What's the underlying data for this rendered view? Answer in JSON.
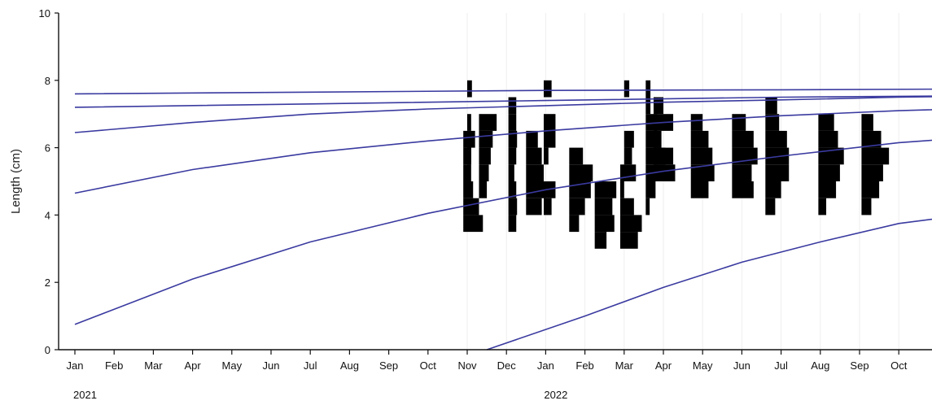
{
  "chart_data": {
    "type": "bar",
    "title": "",
    "xlabel": "",
    "ylabel": "Length (cm)",
    "ylim": [
      0,
      10
    ],
    "yticks": [
      "0",
      "2",
      "4",
      "6",
      "8",
      "10"
    ],
    "xlim": [
      "2021-01",
      "2022-11"
    ],
    "month_ticks": [
      "Jan",
      "Feb",
      "Mar",
      "Apr",
      "May",
      "Jun",
      "Jul",
      "Aug",
      "Sep",
      "Oct",
      "Nov",
      "Dec",
      "Jan",
      "Feb",
      "Mar",
      "Apr",
      "May",
      "Jun",
      "Jul",
      "Aug",
      "Sep",
      "Oct"
    ],
    "year_labels": [
      {
        "label": "2021",
        "month_index": 0
      },
      {
        "label": "2022",
        "month_index": 12
      }
    ],
    "grid": "vertical lines at 2022 month starts",
    "colors": {
      "growth_curve": "#3a3aa0",
      "histogram": "#000000",
      "axis": "#111111",
      "grid": "#eeeeee"
    },
    "growth_curves": [
      {
        "x": [
          0,
          3,
          6,
          9,
          12,
          15,
          18,
          21,
          24
        ],
        "y": [
          0.75,
          2.1,
          3.2,
          4.05,
          4.75,
          5.3,
          5.75,
          6.15,
          6.4
        ]
      },
      {
        "x": [
          0,
          3,
          6,
          9,
          12,
          15,
          18,
          21,
          24
        ],
        "y": [
          4.65,
          5.35,
          5.85,
          6.2,
          6.5,
          6.75,
          6.95,
          7.1,
          7.2
        ]
      },
      {
        "x": [
          0,
          3,
          6,
          9,
          12,
          15,
          18,
          21,
          24
        ],
        "y": [
          6.45,
          6.75,
          7.0,
          7.15,
          7.25,
          7.35,
          7.42,
          7.5,
          7.55
        ]
      },
      {
        "x": [
          0,
          6,
          12,
          18,
          24
        ],
        "y": [
          7.2,
          7.3,
          7.4,
          7.5,
          7.55
        ]
      },
      {
        "x": [
          0,
          6,
          12,
          18,
          24
        ],
        "y": [
          7.6,
          7.65,
          7.7,
          7.72,
          7.75
        ]
      },
      {
        "x": [
          10.5,
          13,
          15,
          17,
          19,
          21,
          24
        ],
        "y": [
          0.0,
          1.0,
          1.85,
          2.6,
          3.2,
          3.75,
          4.2
        ]
      }
    ],
    "histograms": [
      {
        "month": 9.9,
        "bins": [
          [
            3.75,
            0.5
          ],
          [
            4.25,
            0.4
          ],
          [
            4.75,
            0.25
          ],
          [
            5.25,
            0.2
          ],
          [
            5.75,
            0.2
          ],
          [
            6.25,
            0.3
          ]
        ]
      },
      {
        "month": 10.0,
        "bins": [
          [
            5.75,
            0.1
          ],
          [
            6.25,
            0.1
          ],
          [
            6.75,
            0.1
          ],
          [
            7.75,
            0.12
          ]
        ]
      },
      {
        "month": 10.3,
        "bins": [
          [
            4.75,
            0.2
          ],
          [
            5.25,
            0.25
          ],
          [
            5.75,
            0.3
          ],
          [
            6.25,
            0.35
          ],
          [
            6.75,
            0.45
          ]
        ]
      },
      {
        "month": 11.05,
        "bins": [
          [
            3.75,
            0.2
          ],
          [
            4.25,
            0.22
          ],
          [
            4.75,
            0.2
          ],
          [
            5.25,
            0.15
          ],
          [
            5.75,
            0.2
          ],
          [
            6.25,
            0.22
          ],
          [
            6.75,
            0.2
          ],
          [
            7.25,
            0.2
          ]
        ]
      },
      {
        "month": 11.5,
        "bins": [
          [
            4.25,
            0.4
          ],
          [
            4.75,
            0.5
          ],
          [
            5.25,
            0.45
          ],
          [
            5.75,
            0.4
          ],
          [
            6.25,
            0.3
          ]
        ]
      },
      {
        "month": 11.95,
        "bins": [
          [
            4.25,
            0.2
          ],
          [
            4.75,
            0.3
          ],
          [
            5.75,
            0.12
          ],
          [
            6.25,
            0.3
          ],
          [
            6.75,
            0.3
          ],
          [
            7.75,
            0.2
          ]
        ]
      },
      {
        "month": 12.6,
        "bins": [
          [
            3.75,
            0.25
          ],
          [
            4.25,
            0.4
          ],
          [
            4.75,
            0.55
          ],
          [
            5.25,
            0.6
          ],
          [
            5.75,
            0.35
          ]
        ]
      },
      {
        "month": 13.25,
        "bins": [
          [
            3.25,
            0.3
          ],
          [
            3.75,
            0.5
          ],
          [
            4.25,
            0.45
          ],
          [
            4.75,
            0.55
          ]
        ]
      },
      {
        "month": 13.9,
        "bins": [
          [
            3.25,
            0.45
          ],
          [
            3.75,
            0.55
          ],
          [
            4.25,
            0.35
          ],
          [
            4.75,
            0.1
          ],
          [
            5.25,
            0.4
          ]
        ]
      },
      {
        "month": 14.0,
        "bins": [
          [
            5.75,
            0.2
          ],
          [
            6.25,
            0.25
          ],
          [
            7.75,
            0.13
          ]
        ]
      },
      {
        "month": 14.55,
        "bins": [
          [
            4.75,
            0.25
          ],
          [
            5.25,
            0.3
          ],
          [
            5.75,
            0.5
          ],
          [
            6.25,
            0.3
          ],
          [
            6.75,
            0.3
          ],
          [
            4.25,
            0.1
          ],
          [
            7.75,
            0.12
          ],
          [
            7.25,
            0.12
          ]
        ]
      },
      {
        "month": 14.75,
        "bins": [
          [
            6.25,
            0.2
          ],
          [
            6.75,
            0.5
          ],
          [
            7.25,
            0.25
          ],
          [
            5.25,
            0.55
          ],
          [
            5.75,
            0.5
          ]
        ]
      },
      {
        "month": 15.7,
        "bins": [
          [
            4.75,
            0.45
          ],
          [
            5.25,
            0.6
          ],
          [
            5.75,
            0.55
          ],
          [
            6.25,
            0.45
          ],
          [
            6.75,
            0.3
          ]
        ]
      },
      {
        "month": 16.75,
        "bins": [
          [
            4.75,
            0.55
          ],
          [
            5.25,
            0.5
          ],
          [
            5.75,
            0.65
          ],
          [
            6.25,
            0.55
          ],
          [
            6.75,
            0.35
          ]
        ]
      },
      {
        "month": 17.6,
        "bins": [
          [
            4.25,
            0.25
          ],
          [
            4.75,
            0.4
          ],
          [
            5.25,
            0.6
          ],
          [
            5.75,
            0.6
          ],
          [
            6.25,
            0.55
          ],
          [
            6.75,
            0.35
          ],
          [
            7.25,
            0.3
          ]
        ]
      },
      {
        "month": 18.95,
        "bins": [
          [
            4.25,
            0.2
          ],
          [
            4.75,
            0.45
          ],
          [
            5.25,
            0.55
          ],
          [
            5.75,
            0.65
          ],
          [
            6.25,
            0.5
          ],
          [
            6.75,
            0.4
          ]
        ]
      },
      {
        "month": 20.05,
        "bins": [
          [
            4.25,
            0.25
          ],
          [
            4.75,
            0.45
          ],
          [
            5.25,
            0.55
          ],
          [
            5.75,
            0.7
          ],
          [
            6.25,
            0.5
          ],
          [
            6.75,
            0.3
          ]
        ]
      }
    ]
  }
}
